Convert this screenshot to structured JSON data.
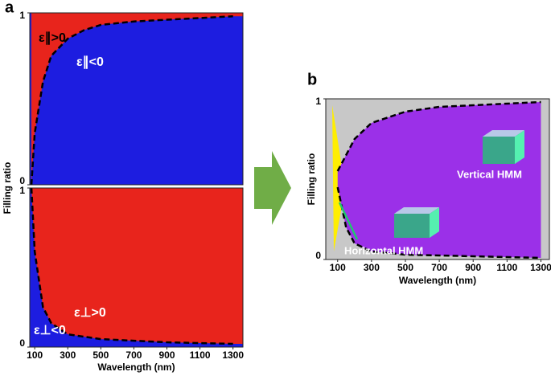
{
  "chart_data": [
    {
      "type": "region",
      "panel": "a",
      "ylabel": "Filling ratio",
      "xlim": [
        70,
        1360
      ],
      "ylim": [
        0,
        1
      ],
      "yticks": [
        0,
        1
      ],
      "colors": {
        "above": "#e8241c",
        "below": "#1d1de0",
        "line": "#000000"
      },
      "x": [
        80,
        100,
        150,
        200,
        300,
        400,
        500,
        700,
        900,
        1100,
        1300
      ],
      "values": [
        0,
        0.3,
        0.6,
        0.75,
        0.85,
        0.9,
        0.93,
        0.95,
        0.96,
        0.97,
        0.98
      ],
      "annotations": [
        "ε∥>0",
        "ε∥<0"
      ]
    },
    {
      "type": "region",
      "xlabel": "Wavelength (nm)",
      "xlim": [
        70,
        1360
      ],
      "ylim": [
        0,
        1
      ],
      "xticks": [
        100,
        300,
        500,
        700,
        900,
        1100,
        1300
      ],
      "yticks": [
        0,
        1
      ],
      "colors": {
        "above": "#e8241c",
        "below": "#1d1de0",
        "line": "#000000"
      },
      "x": [
        80,
        100,
        150,
        200,
        300,
        500,
        700,
        900,
        1100,
        1300
      ],
      "values": [
        1,
        0.6,
        0.25,
        0.15,
        0.08,
        0.05,
        0.04,
        0.03,
        0.025,
        0.02
      ],
      "annotations": [
        "ε⊥>0",
        "ε⊥<0"
      ]
    },
    {
      "type": "band",
      "panel": "b",
      "ylabel": "Filling ratio",
      "xlabel": "Wavelength (nm)",
      "xlim": [
        30,
        1350
      ],
      "ylim": [
        0,
        1
      ],
      "xticks": [
        100,
        300,
        500,
        700,
        900,
        1100,
        1300
      ],
      "yticks": [
        0,
        1
      ],
      "colors": {
        "inside": "#9b30e8",
        "outside": "#c8c8c8",
        "line": "#000000"
      },
      "x": [
        100,
        150,
        200,
        300,
        500,
        700,
        900,
        1100,
        1300
      ],
      "upper": [
        0.55,
        0.65,
        0.75,
        0.85,
        0.92,
        0.95,
        0.96,
        0.97,
        0.98
      ],
      "lower": [
        0.45,
        0.2,
        0.1,
        0.05,
        0.03,
        0.025,
        0.02,
        0.015,
        0.01
      ],
      "annotations": [
        "Vertical HMM",
        "Horizontal HMM"
      ]
    }
  ]
}
